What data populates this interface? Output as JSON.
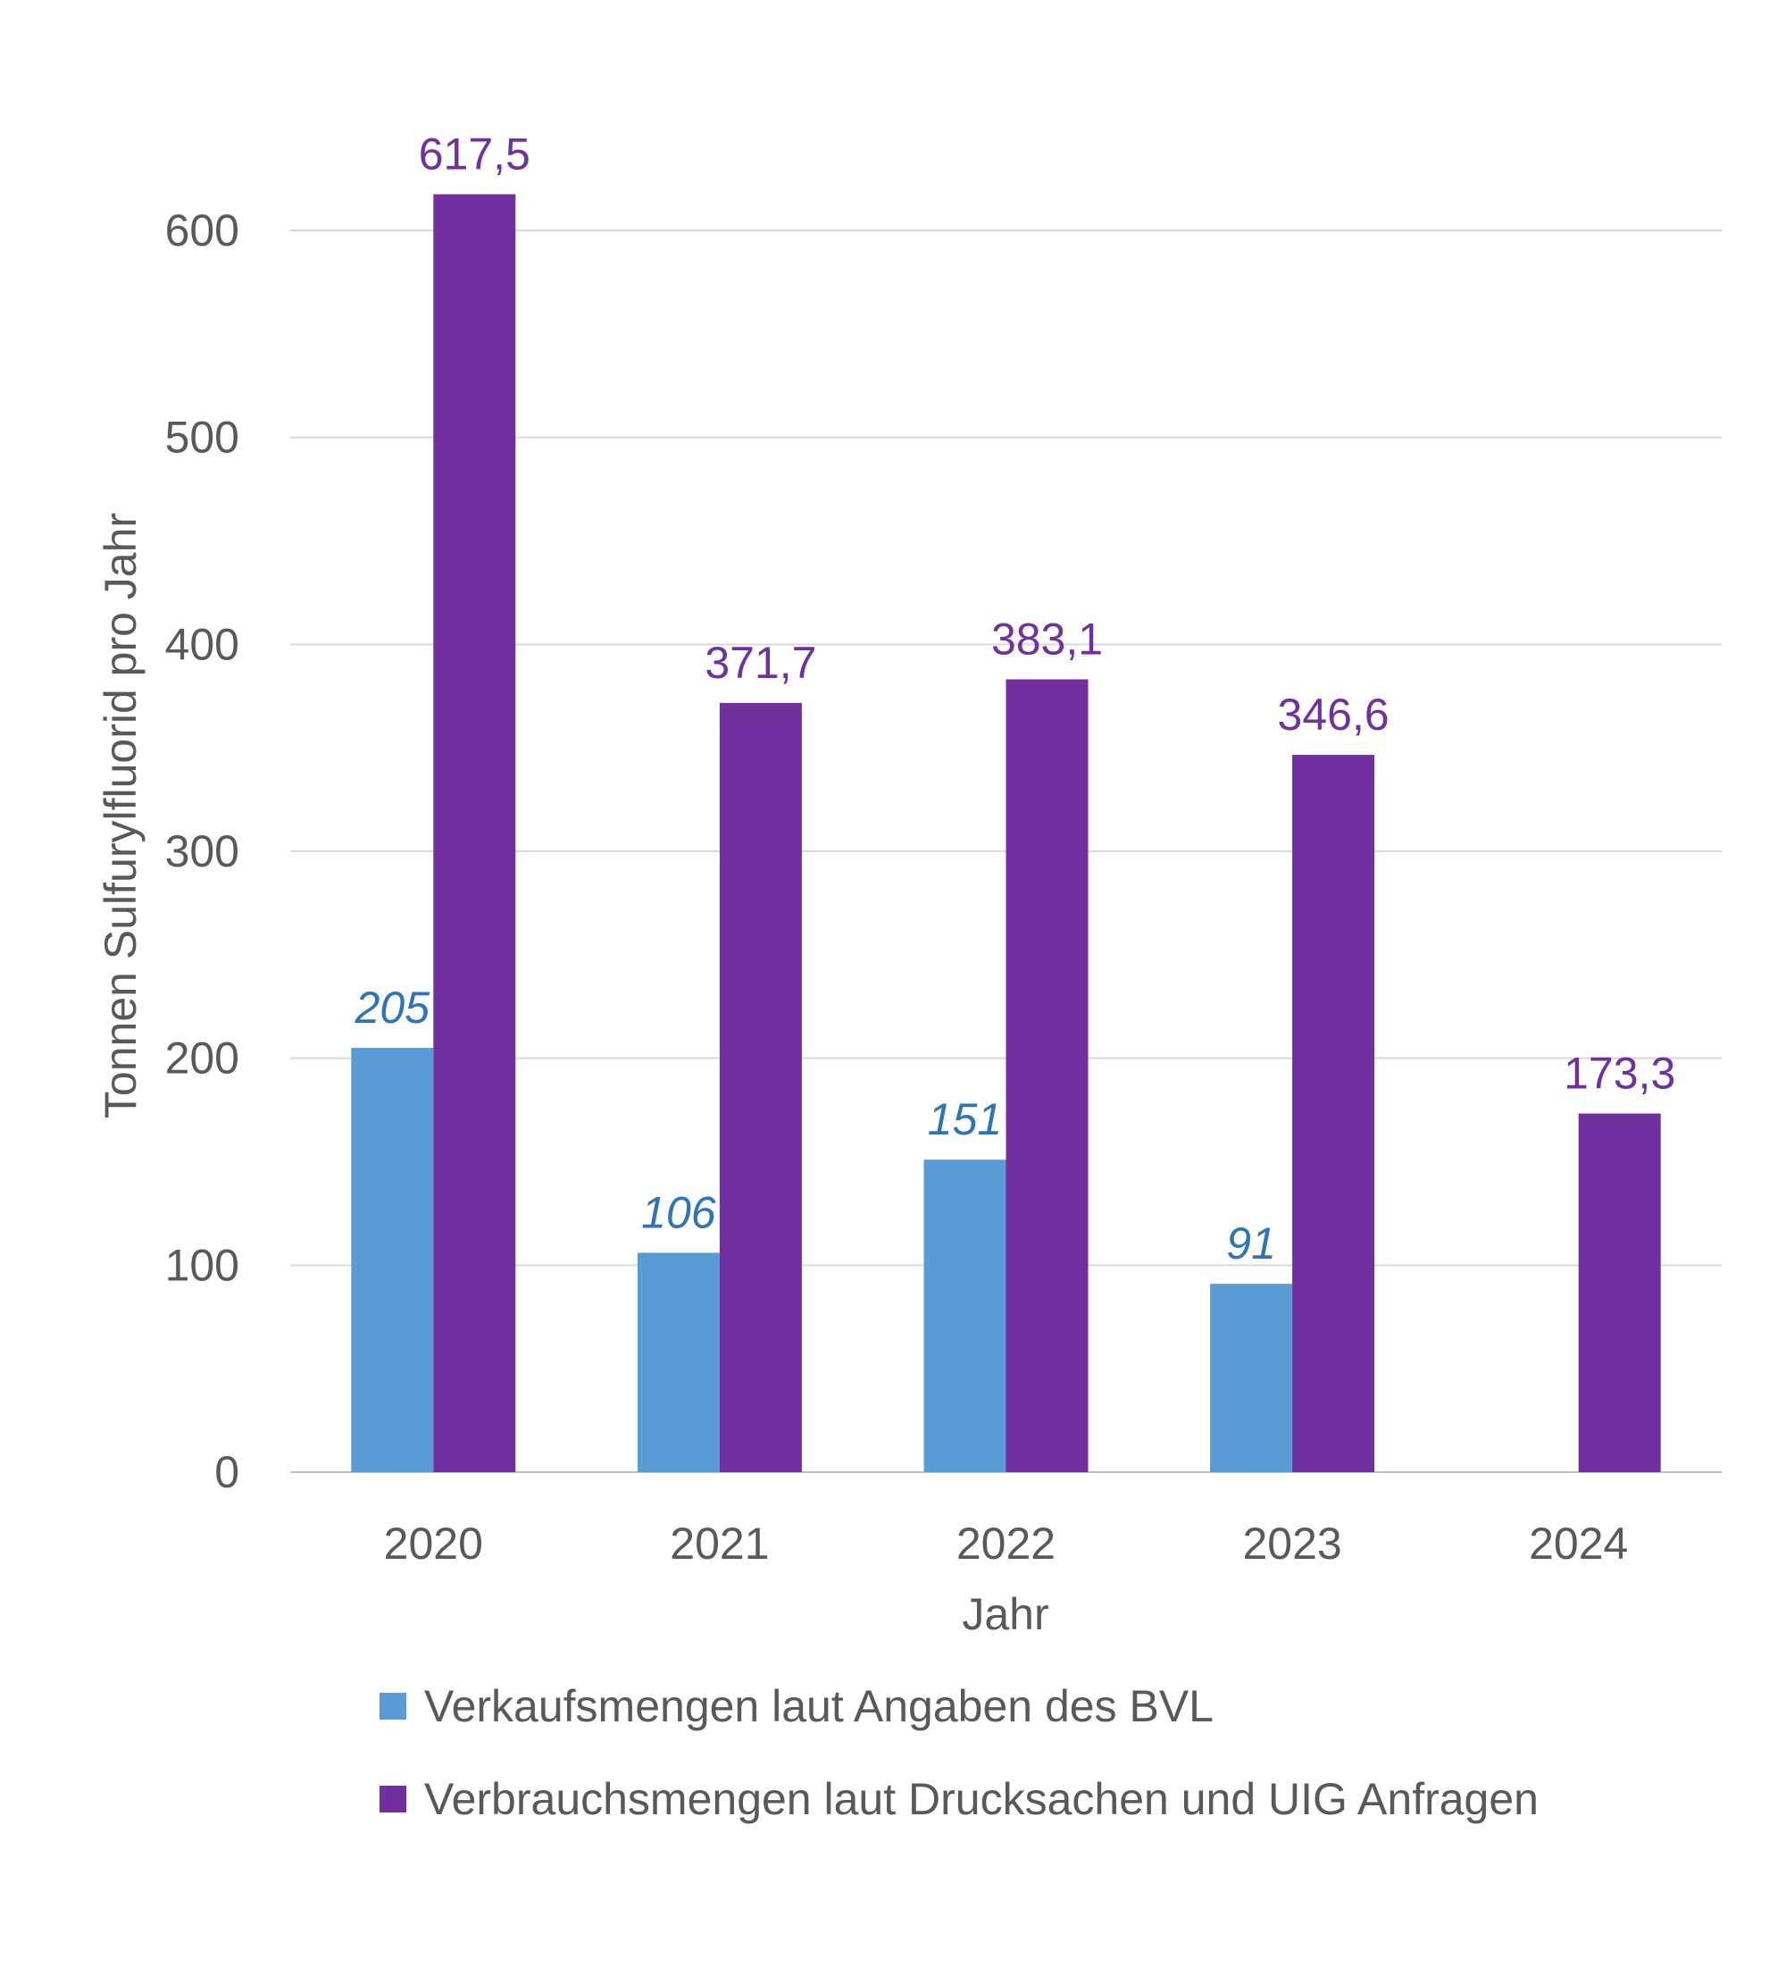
{
  "chart_data": {
    "type": "bar",
    "categories": [
      "2020",
      "2021",
      "2022",
      "2023",
      "2024"
    ],
    "series": [
      {
        "name": "Verkaufsmengen laut Angaben des BVL",
        "values": [
          205,
          106,
          151,
          91,
          null
        ],
        "labels": [
          "205",
          "106",
          "151",
          "91",
          ""
        ],
        "color": "#5B9BD5",
        "label_color": "#2E75B6"
      },
      {
        "name": "Verbrauchsmengen laut Drucksachen und UIG Anfragen",
        "values": [
          617.5,
          371.7,
          383.1,
          346.6,
          173.3
        ],
        "labels": [
          "617,5",
          "371,7",
          "383,1",
          "346,6",
          "173,3"
        ],
        "color": "#7030A0",
        "label_color": "#7030A0"
      }
    ],
    "title": "",
    "xlabel": "Jahr",
    "ylabel": "Tonnen Sulfurylfluorid pro Jahr",
    "ylim": [
      0,
      600
    ],
    "yticks": [
      "0",
      "100",
      "200",
      "300",
      "400",
      "500",
      "600"
    ],
    "grid": true,
    "legend_position": "bottom"
  }
}
